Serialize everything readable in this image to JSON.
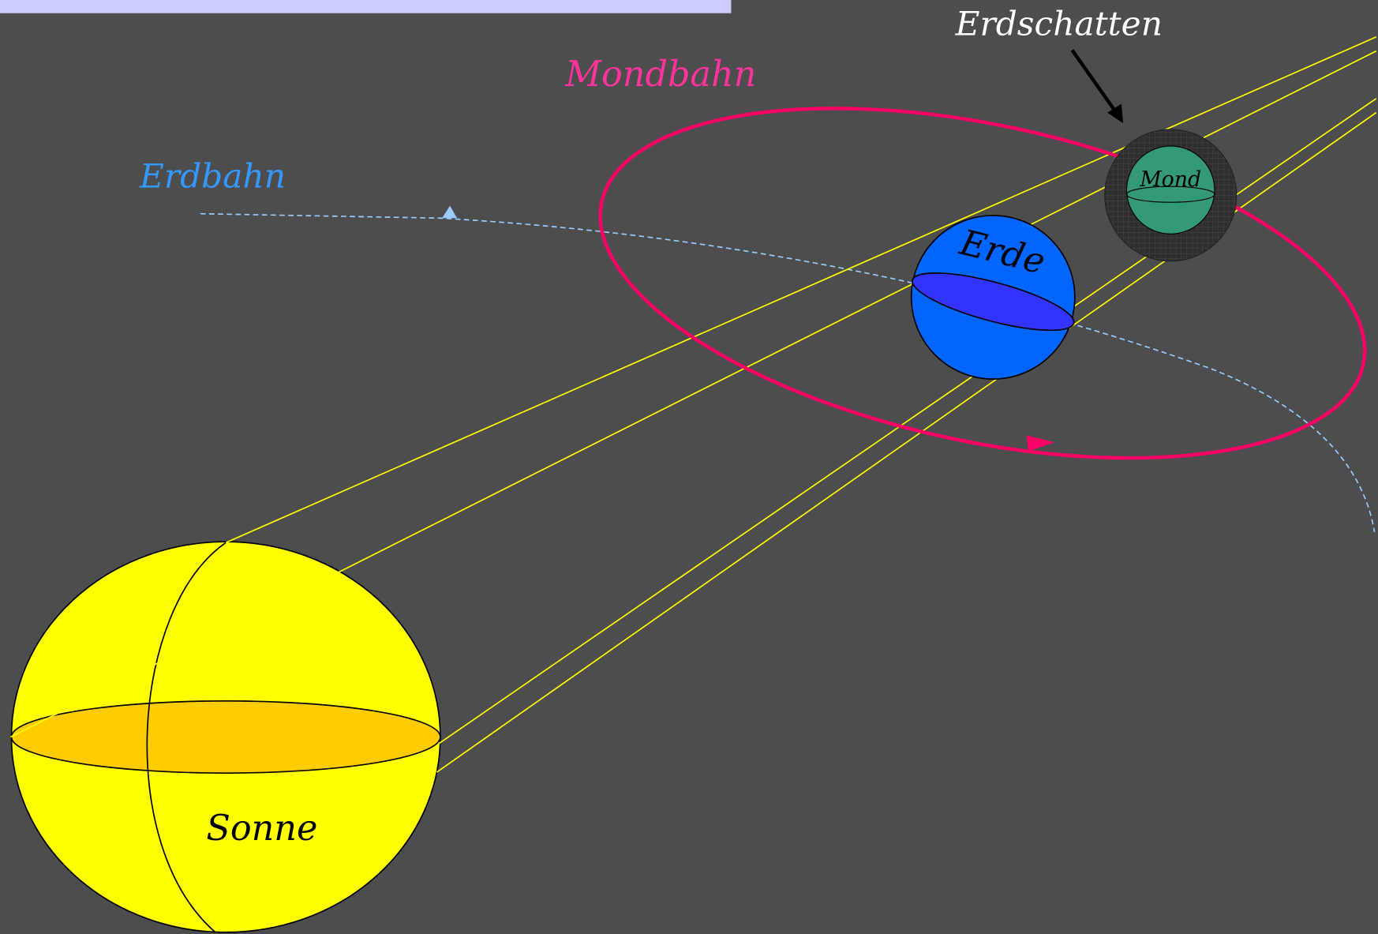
{
  "labels": {
    "shadow": "Erdschatten",
    "moon_orbit": "Mondbahn",
    "earth_orbit": "Erdbahn",
    "earth": "Erde",
    "moon": "Mond",
    "sun": "Sonne"
  }
}
